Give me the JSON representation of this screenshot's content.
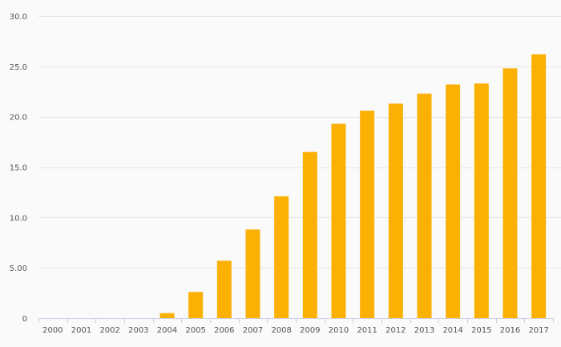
{
  "chart_data": {
    "type": "bar",
    "title": "",
    "xlabel": "",
    "ylabel": "",
    "categories": [
      "2000",
      "2001",
      "2002",
      "2003",
      "2004",
      "2005",
      "2006",
      "2007",
      "2008",
      "2009",
      "2010",
      "2011",
      "2012",
      "2013",
      "2014",
      "2015",
      "2016",
      "2017"
    ],
    "values": [
      0,
      0,
      0,
      0,
      0.5,
      2.6,
      5.7,
      8.8,
      12.1,
      16.5,
      19.3,
      20.6,
      21.3,
      22.3,
      23.2,
      23.3,
      24.8,
      26.2
    ],
    "ylim": [
      0,
      30
    ],
    "yticks": [
      0,
      5,
      10,
      15,
      20,
      25,
      30
    ],
    "ytick_labels": [
      "0",
      "5.00",
      "10.0",
      "15.0",
      "20.0",
      "25.0",
      "30.0"
    ],
    "grid": true,
    "legend": "none",
    "colors": {
      "bar": "#fbb004",
      "grid": "#e6e6e6",
      "axis": "#c8d0e0",
      "text": "#555555",
      "background": "#fafafa"
    }
  }
}
